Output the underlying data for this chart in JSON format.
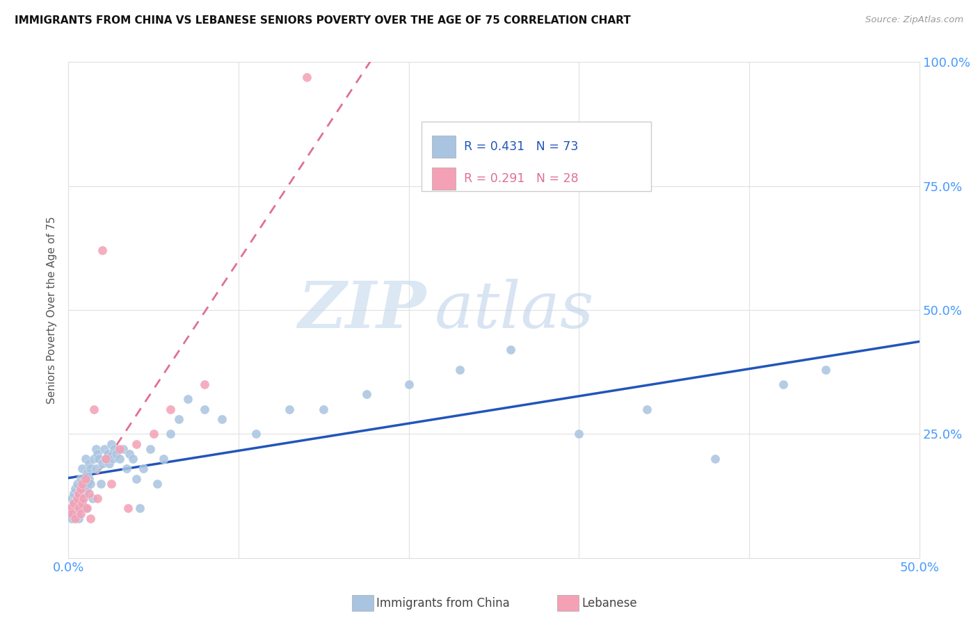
{
  "title": "IMMIGRANTS FROM CHINA VS LEBANESE SENIORS POVERTY OVER THE AGE OF 75 CORRELATION CHART",
  "source": "Source: ZipAtlas.com",
  "ylabel": "Seniors Poverty Over the Age of 75",
  "xlim": [
    0.0,
    0.5
  ],
  "ylim": [
    0.0,
    1.0
  ],
  "china_color": "#a8c4e0",
  "lebanese_color": "#f4a0b5",
  "china_line_color": "#2255bb",
  "lebanese_line_color": "#e07090",
  "watermark_zip": "ZIP",
  "watermark_atlas": "atlas",
  "china_r": 0.431,
  "china_n": 73,
  "lebanese_r": 0.291,
  "lebanese_n": 28,
  "china_x": [
    0.001,
    0.002,
    0.002,
    0.003,
    0.003,
    0.004,
    0.004,
    0.005,
    0.005,
    0.005,
    0.006,
    0.006,
    0.006,
    0.007,
    0.007,
    0.007,
    0.008,
    0.008,
    0.008,
    0.009,
    0.009,
    0.01,
    0.01,
    0.011,
    0.011,
    0.012,
    0.012,
    0.013,
    0.013,
    0.014,
    0.015,
    0.016,
    0.016,
    0.017,
    0.018,
    0.019,
    0.02,
    0.021,
    0.022,
    0.023,
    0.024,
    0.025,
    0.026,
    0.027,
    0.028,
    0.03,
    0.032,
    0.034,
    0.036,
    0.038,
    0.04,
    0.042,
    0.044,
    0.048,
    0.052,
    0.056,
    0.06,
    0.065,
    0.07,
    0.08,
    0.09,
    0.11,
    0.13,
    0.15,
    0.175,
    0.2,
    0.23,
    0.26,
    0.3,
    0.34,
    0.38,
    0.42,
    0.445
  ],
  "china_y": [
    0.1,
    0.12,
    0.08,
    0.13,
    0.11,
    0.1,
    0.14,
    0.09,
    0.12,
    0.15,
    0.11,
    0.13,
    0.08,
    0.1,
    0.16,
    0.12,
    0.14,
    0.11,
    0.18,
    0.13,
    0.15,
    0.1,
    0.2,
    0.17,
    0.14,
    0.19,
    0.16,
    0.18,
    0.15,
    0.12,
    0.2,
    0.22,
    0.18,
    0.21,
    0.2,
    0.15,
    0.19,
    0.22,
    0.2,
    0.21,
    0.19,
    0.23,
    0.2,
    0.22,
    0.21,
    0.2,
    0.22,
    0.18,
    0.21,
    0.2,
    0.16,
    0.1,
    0.18,
    0.22,
    0.15,
    0.2,
    0.25,
    0.28,
    0.32,
    0.3,
    0.28,
    0.25,
    0.3,
    0.3,
    0.33,
    0.35,
    0.38,
    0.42,
    0.25,
    0.3,
    0.2,
    0.35,
    0.38
  ],
  "lebanese_x": [
    0.001,
    0.002,
    0.003,
    0.004,
    0.005,
    0.006,
    0.006,
    0.007,
    0.007,
    0.008,
    0.008,
    0.009,
    0.01,
    0.011,
    0.012,
    0.013,
    0.015,
    0.017,
    0.02,
    0.022,
    0.025,
    0.03,
    0.035,
    0.04,
    0.05,
    0.06,
    0.08,
    0.14
  ],
  "lebanese_y": [
    0.1,
    0.09,
    0.11,
    0.08,
    0.12,
    0.1,
    0.13,
    0.09,
    0.14,
    0.11,
    0.15,
    0.12,
    0.16,
    0.1,
    0.13,
    0.08,
    0.3,
    0.12,
    0.62,
    0.2,
    0.15,
    0.22,
    0.1,
    0.23,
    0.25,
    0.3,
    0.35,
    0.97
  ]
}
